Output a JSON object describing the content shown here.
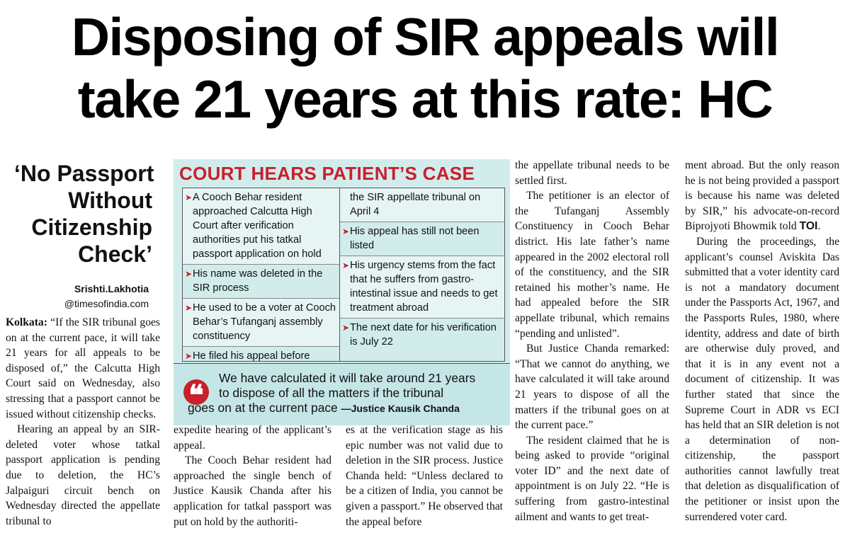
{
  "headline": {
    "line1": "Disposing of SIR appeals will",
    "line2": "take 21 years at this rate: HC"
  },
  "blurb": {
    "line1": "‘No Passport",
    "line2": "Without",
    "line3": "Citizenship",
    "line4": "Check’"
  },
  "byline": {
    "author": "Srishti.Lakhotia",
    "handle": "@timesofindia.com"
  },
  "factbox": {
    "title": "COURT HEARS PATIENT’S CASE",
    "left_items": [
      "A Cooch Behar resident approached Calcutta High Court after verification authorities put his tatkal passport application on hold",
      "His name was deleted in the SIR process",
      "He used to be a voter at Cooch Behar’s Tufanganj assembly constituency",
      "He filed his appeal before"
    ],
    "right_continuation": "the SIR appellate tribunal on April 4",
    "right_items": [
      "His appeal has still not been listed",
      "His urgency stems from the fact that he suffers from gastro-intestinal issue and needs to get treatment abroad",
      "The next date for his verification is July 22"
    ],
    "quote": {
      "line1": "We have calculated it will take around 21 years",
      "line2": "to dispose of all the matters if the tribunal",
      "line3": "goes on at the current pace",
      "attribution": "—Justice Kausik Chanda"
    }
  },
  "article": {
    "col1": {
      "dateline": "Kolkata:",
      "p1": "“If the SIR tribunal goes on at the current pace, it will take 21 years for all appeals to be disposed of,” the Calcutta High Court said on Wednesday, also stressing that a passport cannot be issued without citizenship checks.",
      "p2": "Hearing an appeal by an SIR-deleted voter whose tatkal passport application is pending due to deletion, the HC’s Jalpaiguri circuit bench on Wednesday directed the appellate tribunal to"
    },
    "col2": {
      "p1": "expedite hearing of the applicant’s appeal.",
      "p2": "The Cooch Behar resident had approached the single bench of Justice Kausik Chanda after his application for tatkal passport was put on hold by the authoriti-"
    },
    "col3": {
      "p1": "es at the verification stage as his epic number was not valid due to deletion in the SIR process. Justice Chanda held: “Unless declared to be a citizen of India, you cannot be given a passport.” He observed that the appeal before"
    },
    "col4": {
      "p1": "the appellate tribunal needs to be settled first.",
      "p2": "The petitioner is an elector of the Tufanganj Assembly Constituency in Cooch Behar district. His late father’s name appeared in the 2002 electoral roll of the constituency, and the SIR retained his mother’s name. He had appealed before the SIR appellate tribunal, which remains “pending and unlisted”.",
      "p3": "But Justice Chanda remarked: “That we cannot do anything, we have calculated it will take around 21 years to dispose of all the matters if the tribunal goes on at the current pace.”",
      "p4": "The resident claimed that he is being asked to provide “original voter ID” and the next date of appointment is on July 22. “He is suffering from gastro-intestinal ailment and wants to get treat-"
    },
    "col5": {
      "p1_a": "ment abroad. But the only reason he is not being provided a passport is because his name was deleted by SIR,” his advocate-on-record Biprojyoti Bhowmik told",
      "p1_toi": "TOI",
      "p1_end": ".",
      "p2": "During the proceedings, the applicant’s counsel Aviskita Das submitted that a voter identity card is not a mandatory document under the Passports Act, 1967, and the Passports Rules, 1980, where identity, address and date of birth are otherwise duly proved, and that it is in any event not a document of citizenship. It was further stated that since the Supreme Court in ADR vs ECI has held that an SIR deletion is not a determination of non-citizenship, the passport authorities cannot lawfully treat that deletion as disqualification of the petitioner or insist upon the surrendered voter card."
    }
  }
}
